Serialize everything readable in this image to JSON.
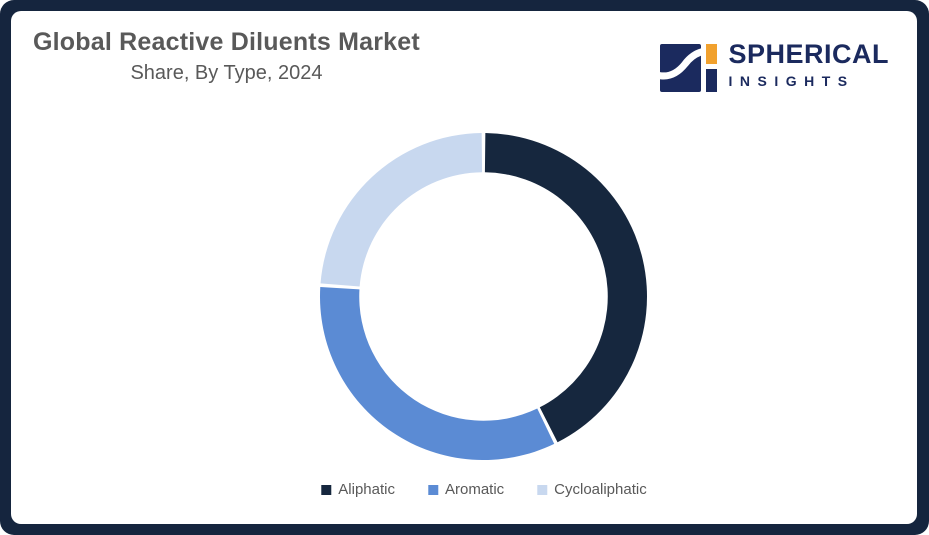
{
  "frame": {
    "border_color": "#15253e",
    "background": "#ffffff"
  },
  "header": {
    "title": "Global Reactive Diluents Market",
    "subtitle": "Share, By Type, 2024",
    "text_color": "#595959"
  },
  "logo": {
    "brand_line1": "SPHERICAL",
    "brand_line2": "INSIGHTS",
    "navy": "#1b2a5e",
    "orange": "#f1a12e"
  },
  "chart_data": {
    "type": "pie",
    "subtype": "donut",
    "title": "Global Reactive Diluents Market Share, By Type, 2024",
    "categories": [
      "Aliphatic",
      "Aromatic",
      "Cycloaliphatic"
    ],
    "values": [
      42.7,
      33.4,
      23.9
    ],
    "unit": "%",
    "colors": [
      "#16273e",
      "#5b8bd4",
      "#c8d8ef"
    ],
    "start_angle_deg": 0,
    "direction": "clockwise",
    "inner_radius_ratio": 0.76,
    "separator_color": "#ffffff",
    "legend_position": "bottom",
    "data_labels": false
  }
}
